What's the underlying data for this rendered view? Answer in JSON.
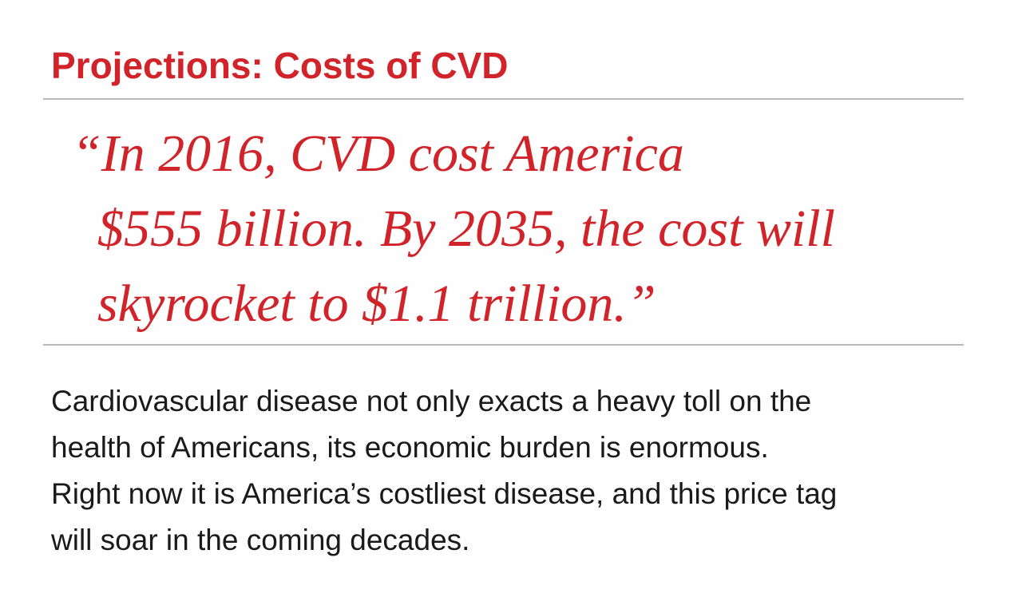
{
  "header": {
    "title": "Projections: Costs of CVD"
  },
  "quote": {
    "lines": [
      "“In 2016, CVD cost America",
      "$555 billion. By 2035, the cost will",
      "skyrocket to $1.1 trillion.”"
    ]
  },
  "body": {
    "lines": [
      "Cardiovascular disease not only exacts a heavy toll on the",
      "health of Americans, its economic burden is enormous.",
      "Right now it is America’s costliest disease, and this price tag",
      "will soar in the coming decades."
    ]
  },
  "colors": {
    "accent": "#d1232a",
    "text": "#1a1a1a",
    "rule": "#b9b9b9"
  }
}
